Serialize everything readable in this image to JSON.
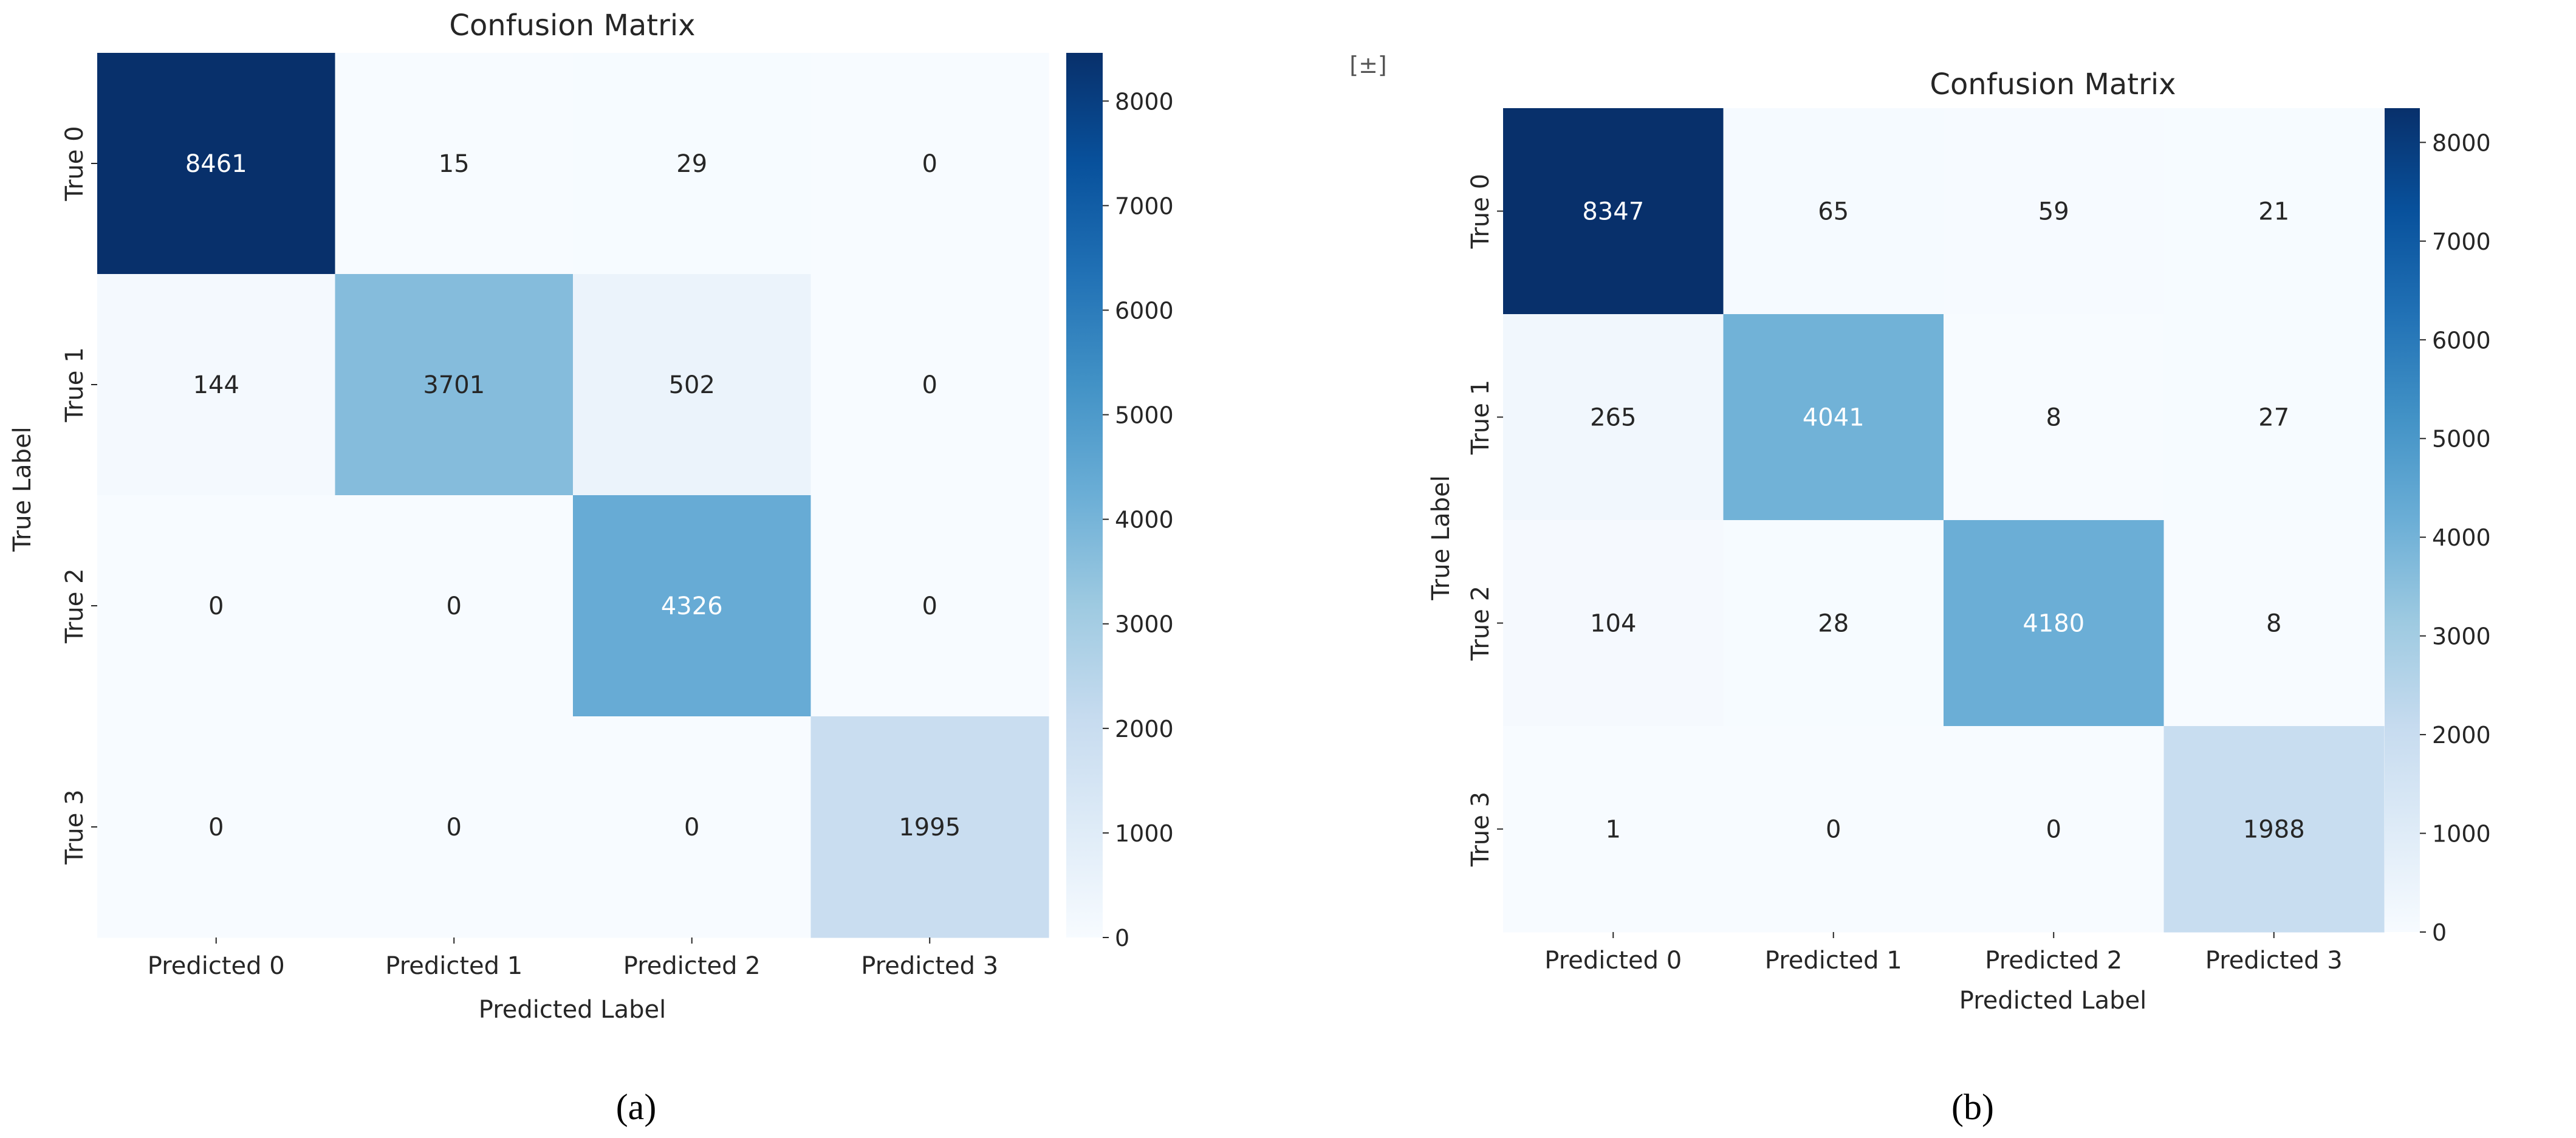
{
  "chart_data": [
    {
      "type": "heatmap",
      "panel_caption": "(a)",
      "title": "Confusion Matrix",
      "xlabel": "Predicted Label",
      "ylabel": "True Label",
      "x_categories": [
        "Predicted 0",
        "Predicted 1",
        "Predicted 2",
        "Predicted 3"
      ],
      "y_categories": [
        "True 0",
        "True 1",
        "True 2",
        "True 3"
      ],
      "matrix": [
        [
          8461,
          15,
          29,
          0
        ],
        [
          144,
          3701,
          502,
          0
        ],
        [
          0,
          0,
          4326,
          0
        ],
        [
          0,
          0,
          0,
          1995
        ]
      ],
      "colorbar": {
        "min": 0,
        "max": 8461,
        "ticks": [
          0,
          1000,
          2000,
          3000,
          4000,
          5000,
          6000,
          7000,
          8000
        ]
      },
      "colormap": "Blues"
    },
    {
      "type": "heatmap",
      "panel_caption": "(b)",
      "title": "Confusion Matrix",
      "xlabel": "Predicted Label",
      "ylabel": "True Label",
      "x_categories": [
        "Predicted 0",
        "Predicted 1",
        "Predicted 2",
        "Predicted 3"
      ],
      "y_categories": [
        "True 0",
        "True 1",
        "True 2",
        "True 3"
      ],
      "matrix": [
        [
          8347,
          65,
          59,
          21
        ],
        [
          265,
          4041,
          8,
          27
        ],
        [
          104,
          28,
          4180,
          8
        ],
        [
          1,
          0,
          0,
          1988
        ]
      ],
      "colorbar": {
        "min": 0,
        "max": 8347,
        "ticks": [
          0,
          1000,
          2000,
          3000,
          4000,
          5000,
          6000,
          7000,
          8000
        ]
      },
      "colormap": "Blues"
    }
  ],
  "colors": {
    "blues_stops": [
      "#f7fbff",
      "#deebf7",
      "#c6dbef",
      "#9ecae1",
      "#6baed6",
      "#4292c6",
      "#2171b5",
      "#08519c",
      "#08306b"
    ],
    "text_dark": "#262626",
    "text_light": "#ffffff"
  },
  "decor": {
    "collab_icon_glyph": "[±]"
  }
}
